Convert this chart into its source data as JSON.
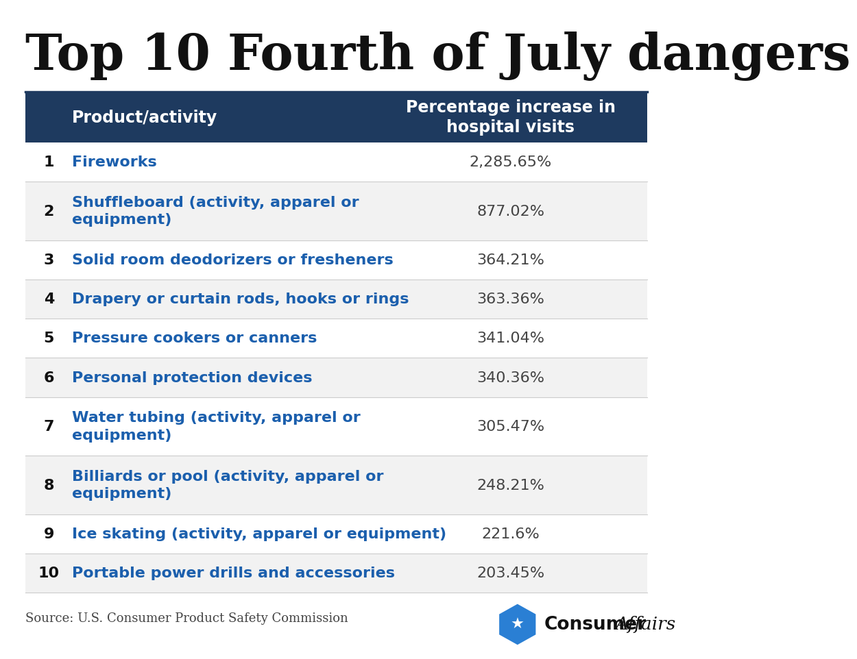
{
  "title": "Top 10 Fourth of July dangers",
  "header_col1": "Product/activity",
  "header_col2": "Percentage increase in\nhospital visits",
  "rows": [
    {
      "rank": "1",
      "product": "Fireworks",
      "pct": "2,285.65%",
      "multiline": false
    },
    {
      "rank": "2",
      "product": "Shuffleboard (activity, apparel or\nequipment)",
      "pct": "877.02%",
      "multiline": true
    },
    {
      "rank": "3",
      "product": "Solid room deodorizers or fresheners",
      "pct": "364.21%",
      "multiline": false
    },
    {
      "rank": "4",
      "product": "Drapery or curtain rods, hooks or rings",
      "pct": "363.36%",
      "multiline": false
    },
    {
      "rank": "5",
      "product": "Pressure cookers or canners",
      "pct": "341.04%",
      "multiline": false
    },
    {
      "rank": "6",
      "product": "Personal protection devices",
      "pct": "340.36%",
      "multiline": false
    },
    {
      "rank": "7",
      "product": "Water tubing (activity, apparel or\nequipment)",
      "pct": "305.47%",
      "multiline": true
    },
    {
      "rank": "8",
      "product": "Billiards or pool (activity, apparel or\nequipment)",
      "pct": "248.21%",
      "multiline": true
    },
    {
      "rank": "9",
      "product": "Ice skating (activity, apparel or equipment)",
      "pct": "221.6%",
      "multiline": false
    },
    {
      "rank": "10",
      "product": "Portable power drills and accessories",
      "pct": "203.45%",
      "multiline": false
    }
  ],
  "header_bg": "#1e3a5f",
  "header_text_color": "#ffffff",
  "row_bg_white": "#ffffff",
  "row_bg_gray": "#f2f2f2",
  "rank_color": "#111111",
  "product_color": "#1b5fad",
  "pct_color": "#444444",
  "title_color": "#111111",
  "source_text": "Source: U.S. Consumer Product Safety Commission",
  "background_color": "#ffffff",
  "logo_text_consumer": "Consumer",
  "logo_text_affairs": "Affairs",
  "logo_shape_color": "#2a7fd4",
  "divider_color": "#cccccc",
  "title_fontsize": 52,
  "header_fontsize": 17,
  "rank_fontsize": 16,
  "product_fontsize": 16,
  "pct_fontsize": 16,
  "source_fontsize": 13
}
